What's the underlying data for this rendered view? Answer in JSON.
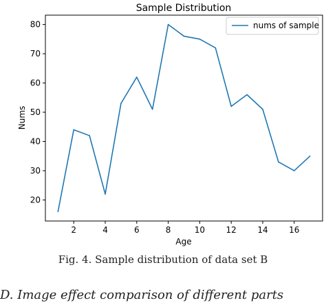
{
  "chart_data": {
    "type": "line",
    "title": "Sample Distribution",
    "xlabel": "Age",
    "ylabel": "Nums",
    "x": [
      1,
      2,
      3,
      4,
      5,
      6,
      7,
      8,
      9,
      10,
      11,
      12,
      13,
      14,
      15,
      16,
      17
    ],
    "series": [
      {
        "name": "nums of sample",
        "values": [
          16,
          44,
          42,
          22,
          53,
          62,
          51,
          80,
          76,
          75,
          72,
          52,
          56,
          51,
          33,
          30,
          35
        ],
        "color": "#1f77b4"
      }
    ],
    "xticks": [
      2,
      4,
      6,
      8,
      10,
      12,
      14,
      16
    ],
    "yticks": [
      20,
      30,
      40,
      50,
      60,
      70,
      80
    ],
    "xlim": [
      0.2,
      17.8
    ],
    "ylim": [
      12.8,
      83.2
    ],
    "legend": "top-right",
    "grid": false
  },
  "caption": "Fig. 4.   Sample distribution of data set B",
  "section_heading": "D.  Image effect comparison of different parts"
}
